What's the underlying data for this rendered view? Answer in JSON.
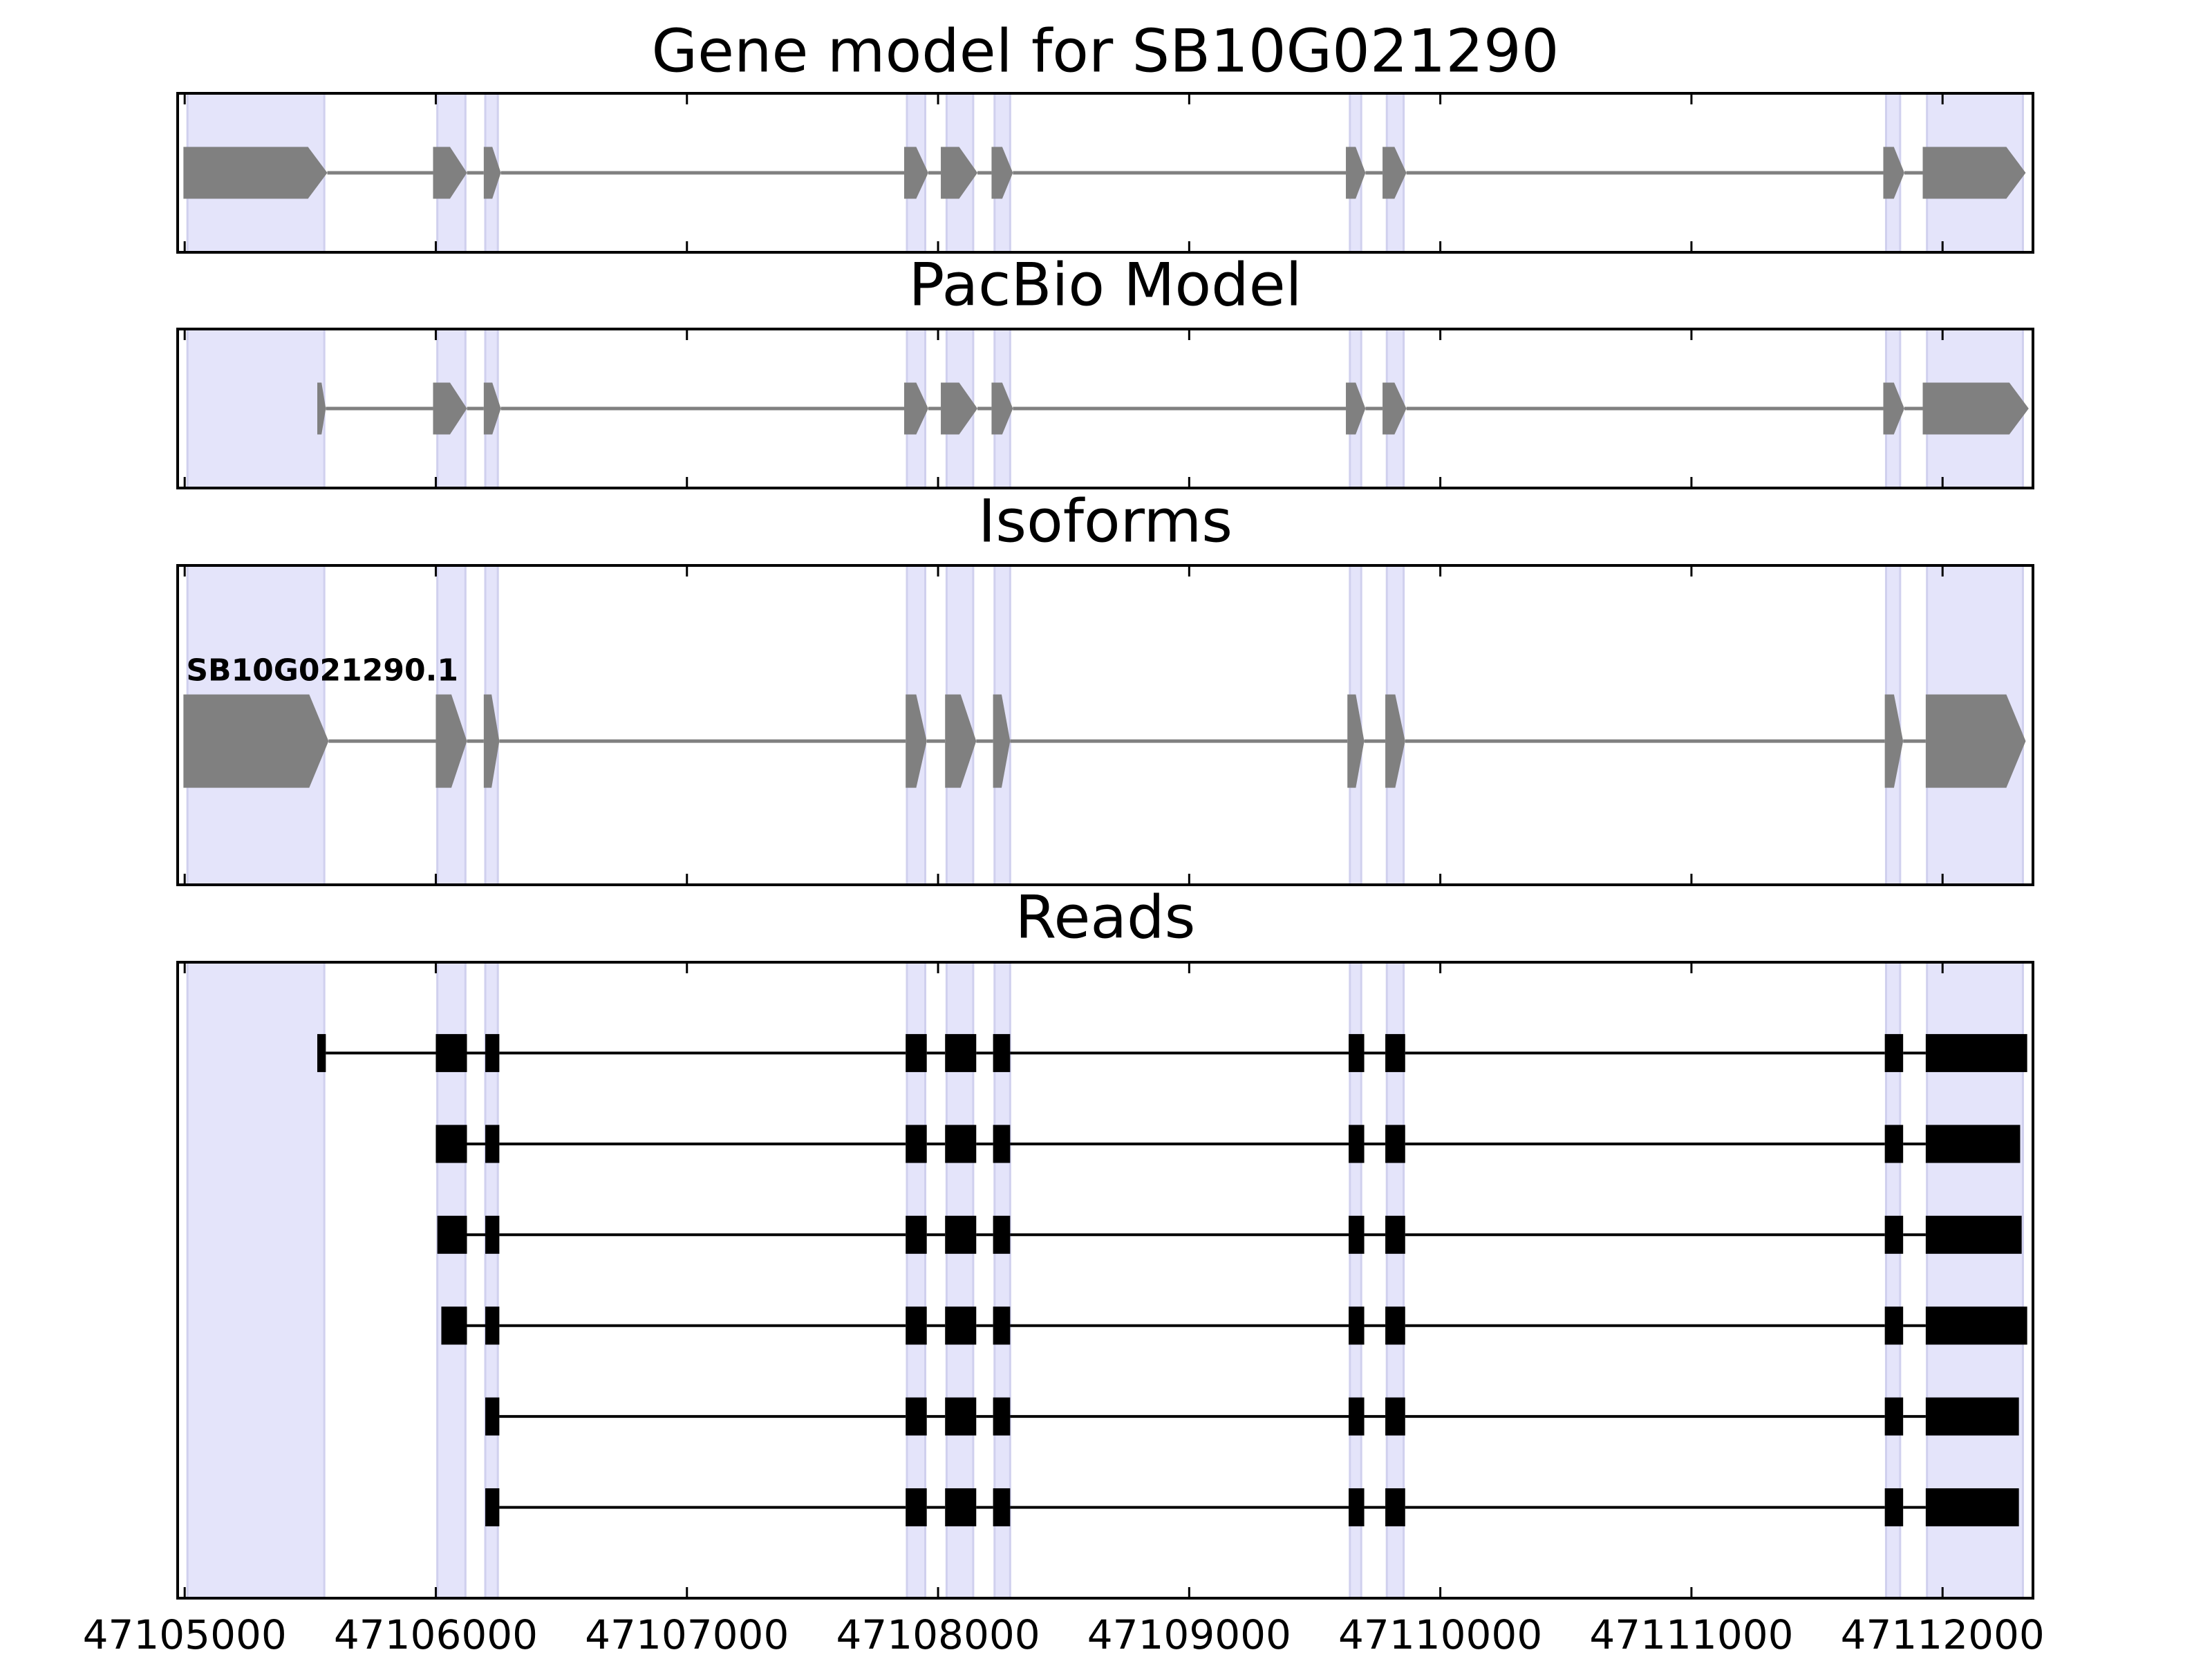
{
  "chart_data": {
    "type": "gene-tracks",
    "xlim": [
      47104972,
      47112360
    ],
    "xticks": [
      47105000,
      47106000,
      47107000,
      47108000,
      47109000,
      47110000,
      47111000,
      47112000
    ],
    "highlight_color": "#e4e4fa",
    "highlight_regions": [
      [
        47105011,
        47105556
      ],
      [
        47106006,
        47106118
      ],
      [
        47106197,
        47106247
      ],
      [
        47107876,
        47107949
      ],
      [
        47108034,
        47108140
      ],
      [
        47108225,
        47108287
      ],
      [
        47109640,
        47109685
      ],
      [
        47109787,
        47109854
      ],
      [
        47111775,
        47111831
      ],
      [
        47111938,
        47112320
      ]
    ],
    "panels": [
      {
        "title": "Gene model for SB10G021290",
        "shape": "arrow",
        "color": "#808080",
        "tracks": [
          {
            "exons": [
              [
                47104995,
                47105568
              ],
              [
                47105989,
                47106124
              ],
              [
                47106191,
                47106259
              ],
              [
                47107865,
                47107961
              ],
              [
                47108011,
                47108157
              ],
              [
                47108213,
                47108298
              ],
              [
                47109624,
                47109702
              ],
              [
                47109770,
                47109865
              ],
              [
                47111764,
                47111848
              ],
              [
                47111921,
                47112331
              ]
            ]
          }
        ]
      },
      {
        "title": "PacBio Model",
        "shape": "arrow",
        "color": "#808080",
        "tracks": [
          {
            "exons": [
              [
                47105528,
                47105562
              ],
              [
                47105989,
                47106124
              ],
              [
                47106191,
                47106259
              ],
              [
                47107865,
                47107961
              ],
              [
                47108011,
                47108157
              ],
              [
                47108213,
                47108298
              ],
              [
                47109624,
                47109702
              ],
              [
                47109770,
                47109865
              ],
              [
                47111764,
                47111848
              ],
              [
                47111921,
                47112343
              ]
            ]
          }
        ]
      },
      {
        "title": "Isoforms",
        "shape": "arrow",
        "color": "#808080",
        "tracks": [
          {
            "name": "SB10G021290.1",
            "exons": [
              [
                47104995,
                47105573
              ],
              [
                47106000,
                47106124
              ],
              [
                47106191,
                47106253
              ],
              [
                47107871,
                47107955
              ],
              [
                47108028,
                47108152
              ],
              [
                47108219,
                47108287
              ],
              [
                47109630,
                47109697
              ],
              [
                47109781,
                47109860
              ],
              [
                47111770,
                47111843
              ],
              [
                47111933,
                47112331
              ]
            ]
          }
        ]
      },
      {
        "title": "Reads",
        "shape": "box",
        "color": "#000000",
        "tracks": [
          {
            "exons": [
              [
                47105528,
                47105562
              ],
              [
                47106000,
                47106124
              ],
              [
                47106197,
                47106253
              ],
              [
                47107871,
                47107955
              ],
              [
                47108028,
                47108152
              ],
              [
                47108219,
                47108287
              ],
              [
                47109635,
                47109697
              ],
              [
                47109781,
                47109860
              ],
              [
                47111770,
                47111843
              ],
              [
                47111933,
                47112337
              ]
            ]
          },
          {
            "exons": [
              [
                47106000,
                47106124
              ],
              [
                47106197,
                47106253
              ],
              [
                47107871,
                47107955
              ],
              [
                47108028,
                47108152
              ],
              [
                47108219,
                47108287
              ],
              [
                47109635,
                47109697
              ],
              [
                47109781,
                47109860
              ],
              [
                47111770,
                47111843
              ],
              [
                47111933,
                47112309
              ]
            ]
          },
          {
            "exons": [
              [
                47106006,
                47106124
              ],
              [
                47106197,
                47106253
              ],
              [
                47107871,
                47107955
              ],
              [
                47108028,
                47108152
              ],
              [
                47108219,
                47108287
              ],
              [
                47109635,
                47109697
              ],
              [
                47109781,
                47109860
              ],
              [
                47111770,
                47111843
              ],
              [
                47111933,
                47112315
              ]
            ]
          },
          {
            "exons": [
              [
                47106022,
                47106124
              ],
              [
                47106197,
                47106253
              ],
              [
                47107871,
                47107955
              ],
              [
                47108028,
                47108152
              ],
              [
                47108219,
                47108287
              ],
              [
                47109635,
                47109697
              ],
              [
                47109781,
                47109860
              ],
              [
                47111770,
                47111843
              ],
              [
                47111933,
                47112337
              ]
            ]
          },
          {
            "exons": [
              [
                47106197,
                47106253
              ],
              [
                47107871,
                47107955
              ],
              [
                47108028,
                47108152
              ],
              [
                47108219,
                47108287
              ],
              [
                47109635,
                47109697
              ],
              [
                47109781,
                47109860
              ],
              [
                47111770,
                47111843
              ],
              [
                47111933,
                47112304
              ]
            ]
          },
          {
            "exons": [
              [
                47106197,
                47106253
              ],
              [
                47107871,
                47107955
              ],
              [
                47108028,
                47108152
              ],
              [
                47108219,
                47108287
              ],
              [
                47109635,
                47109697
              ],
              [
                47109781,
                47109860
              ],
              [
                47111770,
                47111843
              ],
              [
                47111933,
                47112304
              ]
            ]
          }
        ]
      }
    ]
  }
}
